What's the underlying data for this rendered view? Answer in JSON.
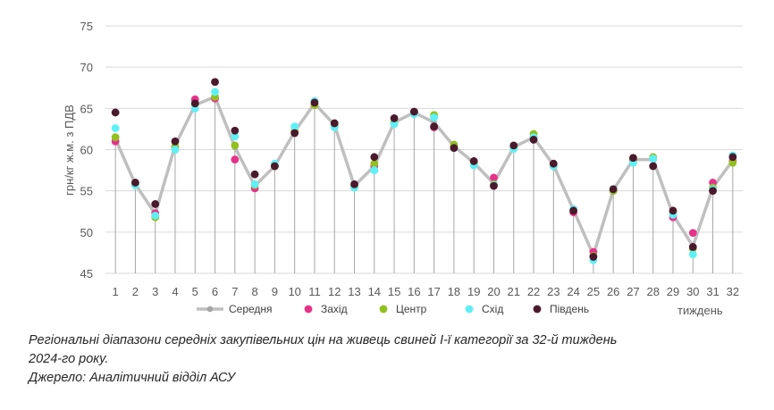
{
  "chart_data": {
    "type": "line",
    "ylabel": "грн/кг ж.м. з ПДВ",
    "xlabel": "тиждень",
    "ylim": [
      45,
      75
    ],
    "yticks": [
      45,
      50,
      55,
      60,
      65,
      70,
      75
    ],
    "x": [
      1,
      2,
      3,
      4,
      5,
      6,
      7,
      8,
      9,
      10,
      11,
      12,
      13,
      14,
      15,
      16,
      17,
      18,
      19,
      20,
      21,
      22,
      23,
      24,
      25,
      26,
      27,
      28,
      29,
      30,
      31,
      32
    ],
    "legend_position": "bottom",
    "series": [
      {
        "name": "Середня",
        "style": "line",
        "color": "#BFBFBF",
        "values": [
          61.3,
          55.8,
          52.2,
          60.5,
          65.4,
          66.4,
          60.3,
          55.6,
          58.0,
          62.2,
          65.6,
          63.0,
          55.6,
          58.0,
          63.3,
          64.5,
          63.3,
          60.4,
          58.4,
          55.9,
          60.3,
          61.5,
          58.1,
          52.7,
          47.2,
          55.1,
          58.8,
          58.8,
          52.1,
          48.3,
          55.4,
          58.7
        ]
      },
      {
        "name": "Захід",
        "style": "marker",
        "color": "#E6338A",
        "values": [
          61.0,
          55.8,
          52.3,
          60.3,
          66.1,
          66.2,
          58.8,
          55.3,
          58.0,
          62.1,
          65.4,
          63.0,
          55.5,
          58.0,
          63.2,
          64.4,
          62.7,
          60.4,
          58.6,
          56.6,
          60.3,
          61.5,
          58.0,
          52.4,
          47.6,
          55.0,
          58.6,
          58.9,
          51.8,
          49.9,
          56.0,
          58.6
        ]
      },
      {
        "name": "Центр",
        "style": "marker",
        "color": "#92C01F",
        "values": [
          61.5,
          55.7,
          51.8,
          60.4,
          65.5,
          66.4,
          60.5,
          55.7,
          58.0,
          62.2,
          65.4,
          63.0,
          55.6,
          58.3,
          63.3,
          64.5,
          64.2,
          60.6,
          58.4,
          55.8,
          60.3,
          61.9,
          58.0,
          52.7,
          47.1,
          55.0,
          58.8,
          59.1,
          52.4,
          48.0,
          55.4,
          58.4
        ]
      },
      {
        "name": "Схід",
        "style": "marker",
        "color": "#5EF0F5",
        "values": [
          62.6,
          55.7,
          52.0,
          60.0,
          65.0,
          67.0,
          61.6,
          55.8,
          58.3,
          62.8,
          65.9,
          62.7,
          55.4,
          57.5,
          63.1,
          64.3,
          63.9,
          60.2,
          58.1,
          55.7,
          60.1,
          61.5,
          58.0,
          52.8,
          46.6,
          55.2,
          58.4,
          58.9,
          52.1,
          47.3,
          55.2,
          59.3
        ]
      },
      {
        "name": "Південь",
        "style": "marker",
        "color": "#4A1A2C",
        "values": [
          64.5,
          56.0,
          53.4,
          61.0,
          65.6,
          68.2,
          62.3,
          57.0,
          58.0,
          62.0,
          65.7,
          63.2,
          55.8,
          59.1,
          63.8,
          64.6,
          62.8,
          60.2,
          58.6,
          55.6,
          60.5,
          61.2,
          58.3,
          52.6,
          47.0,
          55.2,
          59.0,
          58.0,
          52.6,
          48.2,
          55.0,
          59.1
        ]
      }
    ]
  },
  "caption": {
    "line1": "Регіональні діапазони середніх закупівельних цін на живець свиней І-ї категорії за 32-й тиждень",
    "line2": "2024-го року.",
    "line3": "Джерело: Аналітичний відділ АСУ"
  }
}
